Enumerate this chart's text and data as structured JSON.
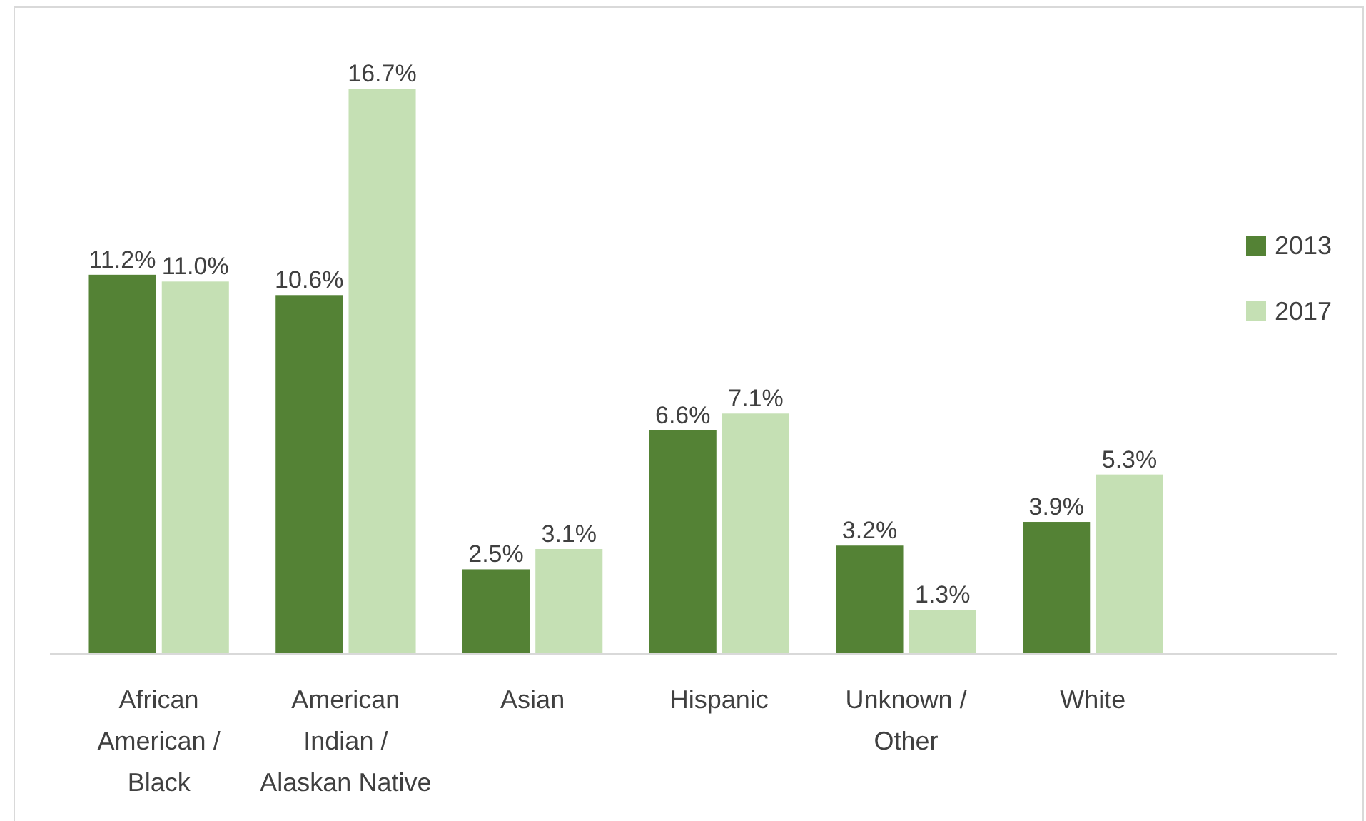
{
  "chart_data": {
    "type": "bar",
    "categories": [
      "African American / Black",
      "American Indian / Alaskan Native",
      "Asian",
      "Hispanic",
      "Unknown / Other",
      "White"
    ],
    "series": [
      {
        "name": "2013",
        "color": "#548235",
        "values": [
          11.2,
          10.6,
          2.5,
          6.6,
          3.2,
          3.9
        ],
        "value_labels": [
          "11.2%",
          "10.6%",
          "2.5%",
          "6.6%",
          "3.2%",
          "3.9%"
        ]
      },
      {
        "name": "2017",
        "color": "#c5e0b4",
        "values": [
          11.0,
          16.7,
          3.1,
          7.1,
          1.3,
          5.3
        ],
        "value_labels": [
          "11.0%",
          "16.7%",
          "3.1%",
          "7.1%",
          "1.3%",
          "5.3%"
        ]
      }
    ],
    "legend": "right"
  }
}
